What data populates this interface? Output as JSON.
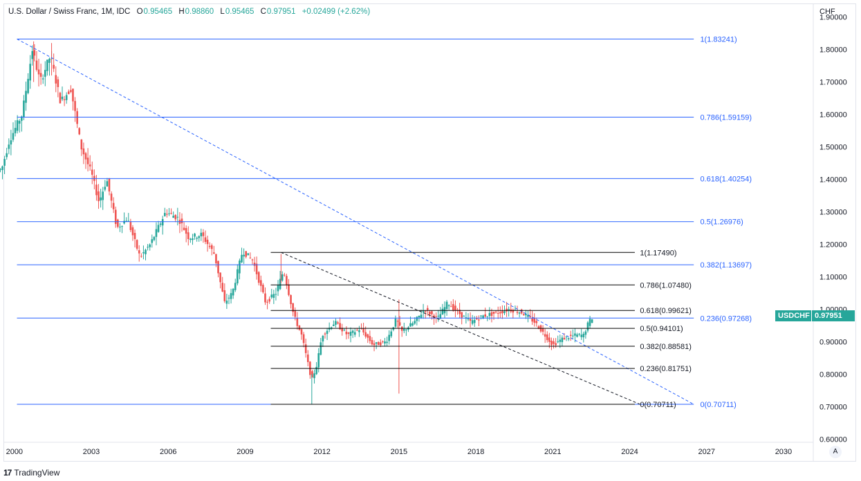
{
  "header": {
    "symbol_title": "U.S. Dollar / Swiss Franc, 1M, IDC",
    "open_label": "O",
    "open": "0.95465",
    "high_label": "H",
    "high": "0.98860",
    "low_label": "L",
    "low": "0.95465",
    "close_label": "C",
    "close": "0.97951",
    "change": "+0.02499 (+2.62%)"
  },
  "axis": {
    "currency": "CHF"
  },
  "price_tag": {
    "symbol": "USDCHF",
    "price": "0.97951"
  },
  "auto_button": "A",
  "branding": {
    "logo": "17",
    "name": "TradingView"
  },
  "colors": {
    "up": "#26a69a",
    "down": "#ef5350",
    "fib_major": "#2962ff",
    "fib_minor": "#000000",
    "label_blue": "#2962ff"
  },
  "chart_data": {
    "type": "candlestick",
    "title": "U.S. Dollar / Swiss Franc, 1M, IDC",
    "xlim": [
      1999.6,
      2031.0
    ],
    "ylim": [
      0.59,
      1.91
    ],
    "x_ticks": [
      "2000",
      "2003",
      "2006",
      "2009",
      "2012",
      "2015",
      "2018",
      "2021",
      "2024",
      "2027",
      "2030"
    ],
    "y_ticks": [
      "1.90000",
      "1.80000",
      "1.70000",
      "1.60000",
      "1.50000",
      "1.40000",
      "1.30000",
      "1.20000",
      "1.10000",
      "1.00000",
      "0.90000",
      "0.80000",
      "0.70000",
      "0.60000"
    ],
    "price_keyframes": [
      [
        1999.5,
        1.43
      ],
      [
        1999.8,
        1.52
      ],
      [
        2000.3,
        1.6
      ],
      [
        2000.7,
        1.8
      ],
      [
        2001.0,
        1.7
      ],
      [
        2001.4,
        1.78
      ],
      [
        2001.8,
        1.64
      ],
      [
        2002.2,
        1.68
      ],
      [
        2002.6,
        1.5
      ],
      [
        2003.0,
        1.42
      ],
      [
        2003.3,
        1.33
      ],
      [
        2003.6,
        1.4
      ],
      [
        2004.0,
        1.25
      ],
      [
        2004.4,
        1.28
      ],
      [
        2004.9,
        1.16
      ],
      [
        2005.3,
        1.2
      ],
      [
        2005.9,
        1.3
      ],
      [
        2006.4,
        1.28
      ],
      [
        2006.8,
        1.22
      ],
      [
        2007.3,
        1.23
      ],
      [
        2007.8,
        1.17
      ],
      [
        2008.2,
        1.02
      ],
      [
        2008.5,
        1.05
      ],
      [
        2008.9,
        1.18
      ],
      [
        2009.3,
        1.15
      ],
      [
        2009.8,
        1.02
      ],
      [
        2010.2,
        1.05
      ],
      [
        2010.5,
        1.12
      ],
      [
        2010.9,
        0.98
      ],
      [
        2011.2,
        0.92
      ],
      [
        2011.6,
        0.78
      ],
      [
        2011.8,
        0.83
      ],
      [
        2012.0,
        0.92
      ],
      [
        2012.5,
        0.96
      ],
      [
        2013.0,
        0.92
      ],
      [
        2013.5,
        0.94
      ],
      [
        2014.0,
        0.89
      ],
      [
        2014.5,
        0.9
      ],
      [
        2014.9,
        0.97
      ],
      [
        2015.1,
        0.93
      ],
      [
        2015.6,
        0.96
      ],
      [
        2016.0,
        1.0
      ],
      [
        2016.5,
        0.97
      ],
      [
        2016.9,
        1.02
      ],
      [
        2017.3,
        0.99
      ],
      [
        2017.8,
        0.96
      ],
      [
        2018.3,
        0.98
      ],
      [
        2018.9,
        0.99
      ],
      [
        2019.3,
        1.0
      ],
      [
        2019.8,
        0.99
      ],
      [
        2020.3,
        0.96
      ],
      [
        2020.7,
        0.92
      ],
      [
        2021.0,
        0.89
      ],
      [
        2021.4,
        0.91
      ],
      [
        2021.9,
        0.92
      ],
      [
        2022.2,
        0.92
      ],
      [
        2022.4,
        0.96
      ],
      [
        2022.6,
        0.98
      ]
    ],
    "spikes": [
      {
        "t": 2000.75,
        "high": 1.825,
        "low": 1.7
      },
      {
        "t": 2001.45,
        "high": 1.82,
        "low": 1.72
      },
      {
        "t": 2010.4,
        "high": 1.17,
        "low": 1.08
      },
      {
        "t": 2011.6,
        "high": 0.8,
        "low": 0.7071
      },
      {
        "t": 2015.0,
        "high": 1.03,
        "low": 0.74
      },
      {
        "t": 2020.95,
        "high": 0.9,
        "low": 0.885
      }
    ],
    "fib_major": {
      "name": "Fib retracement 1.83241 to 0.70711",
      "start_t": 2000.1,
      "end_t": 2026.5,
      "label_t": 2026.75,
      "trend": [
        [
          2000.1,
          1.83241
        ],
        [
          2026.5,
          0.70711
        ]
      ],
      "levels": [
        {
          "label": "1(1.83241)",
          "value": 1.83241
        },
        {
          "label": "0.786(1.59159)",
          "value": 1.59159
        },
        {
          "label": "0.618(1.40254)",
          "value": 1.40254
        },
        {
          "label": "0.5(1.26976)",
          "value": 1.26976
        },
        {
          "label": "0.382(1.13697)",
          "value": 1.13697
        },
        {
          "label": "0.236(0.97268)",
          "value": 0.97268
        },
        {
          "label": "0(0.70711)",
          "value": 0.70711
        }
      ]
    },
    "fib_minor": {
      "name": "Fib retracement 1.17490 to 0.70711",
      "start_t": 2010.0,
      "end_t": 2024.2,
      "label_t": 2024.4,
      "trend": [
        [
          2010.4,
          1.1749
        ],
        [
          2024.4,
          0.70711
        ]
      ],
      "levels": [
        {
          "label": "1(1.17490)",
          "value": 1.1749
        },
        {
          "label": "0.786(1.07480)",
          "value": 1.0748
        },
        {
          "label": "0.618(0.99621)",
          "value": 0.99621
        },
        {
          "label": "0.5(0.94101)",
          "value": 0.94101
        },
        {
          "label": "0.382(0.88581)",
          "value": 0.88581
        },
        {
          "label": "0.236(0.81751)",
          "value": 0.81751
        },
        {
          "label": "0(0.70711)",
          "value": 0.70711
        }
      ]
    }
  }
}
